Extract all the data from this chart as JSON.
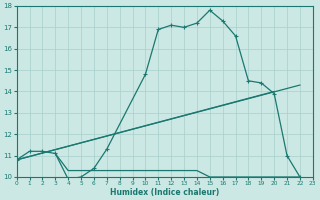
{
  "xlabel": "Humidex (Indice chaleur)",
  "bg_color": "#cce8e4",
  "line_color": "#1a7870",
  "grid_color": "#a8d0cc",
  "xlim": [
    0,
    23
  ],
  "ylim": [
    10,
    18
  ],
  "xticks": [
    0,
    1,
    2,
    3,
    4,
    5,
    6,
    7,
    8,
    9,
    10,
    11,
    12,
    13,
    14,
    15,
    16,
    17,
    18,
    19,
    20,
    21,
    22,
    23
  ],
  "yticks": [
    10,
    11,
    12,
    13,
    14,
    15,
    16,
    17,
    18
  ],
  "line_main": {
    "x": [
      0,
      1,
      2,
      3,
      4,
      5,
      6,
      7,
      10,
      11,
      12,
      13,
      14,
      15,
      16,
      17,
      18,
      19,
      20,
      21,
      22
    ],
    "y": [
      10.8,
      11.2,
      11.2,
      11.1,
      9.9,
      10.0,
      10.4,
      11.3,
      14.8,
      16.9,
      17.1,
      17.0,
      17.2,
      17.8,
      17.3,
      16.6,
      14.5,
      14.4,
      13.9,
      11.0,
      10.0
    ]
  },
  "line_diag1": {
    "x": [
      0,
      22
    ],
    "y": [
      10.8,
      14.3
    ]
  },
  "line_diag2": {
    "x": [
      0,
      20
    ],
    "y": [
      10.8,
      14.0
    ]
  },
  "line_flat": {
    "x": [
      3,
      4,
      5,
      6,
      7,
      8,
      9,
      10,
      11,
      12,
      13,
      14,
      15,
      16,
      17,
      18,
      22
    ],
    "y": [
      11.1,
      10.3,
      10.3,
      10.3,
      10.3,
      10.3,
      10.3,
      10.3,
      10.3,
      10.3,
      10.3,
      10.3,
      10.0,
      10.0,
      10.0,
      10.0,
      10.0
    ]
  }
}
